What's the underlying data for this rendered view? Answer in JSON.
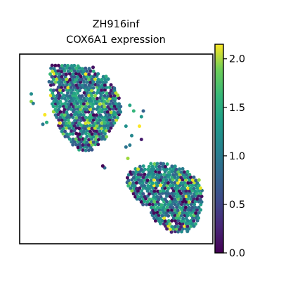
{
  "chart_data": {
    "type": "scatter",
    "title": "ZH916inf",
    "subtitle": "COX6A1 expression",
    "xlabel": "",
    "ylabel": "",
    "colorbar": {
      "cmap": "viridis",
      "range": [
        0.0,
        2.15
      ],
      "ticks": [
        {
          "value": 0.0,
          "label": "0.0"
        },
        {
          "value": 0.5,
          "label": "0.5"
        },
        {
          "value": 1.0,
          "label": "1.0"
        },
        {
          "value": 1.5,
          "label": "1.5"
        },
        {
          "value": 2.0,
          "label": "2.0"
        }
      ]
    },
    "clusters": [
      {
        "region": "upper-left",
        "x_range": [
          0.05,
          0.7
        ],
        "y_range": [
          0.55,
          0.95
        ],
        "mean_expression": 1.1
      },
      {
        "region": "lower-right",
        "x_range": [
          0.53,
          0.98
        ],
        "y_range": [
          0.05,
          0.42
        ],
        "mean_expression": 1.1
      }
    ],
    "grid": false,
    "axes_ticks_visible": false,
    "colors": {
      "viridis_low": "#440154",
      "viridis_mid": "#21918c",
      "viridis_high": "#fde725"
    }
  }
}
